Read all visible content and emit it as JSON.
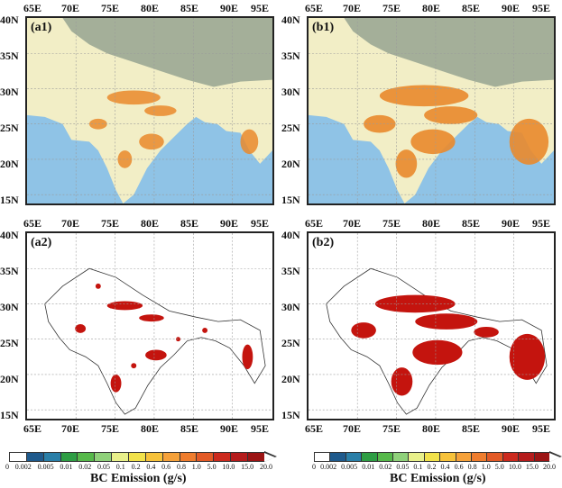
{
  "panels": {
    "a1": {
      "label": "(a1)"
    },
    "b1": {
      "label": "(b1)"
    },
    "a2": {
      "label": "(a2)"
    },
    "b2": {
      "label": "(b2)"
    }
  },
  "axes": {
    "lon_ticks": [
      "65E",
      "70E",
      "75E",
      "80E",
      "85E",
      "90E",
      "95E"
    ],
    "lat_ticks": [
      "40N",
      "35N",
      "30N",
      "25N",
      "20N",
      "15N"
    ]
  },
  "colorbar": {
    "title": "BC Emission (g/s)",
    "tick_labels": [
      "0",
      "0.002",
      "0.005",
      "0.01",
      "0.02",
      "0.05",
      "0.1",
      "0.2",
      "0.4",
      "0.6",
      "0.8",
      "1.0",
      "5.0",
      "10.0",
      "15.0",
      "20.0"
    ],
    "colors": [
      "#ffffff",
      "#1f5a8c",
      "#2a7fa8",
      "#2e9e44",
      "#56b94a",
      "#8fd17a",
      "#e8f08a",
      "#f2e24a",
      "#f7c23a",
      "#f5a13a",
      "#ef7d2e",
      "#e35a26",
      "#cc2a1e",
      "#b51c1c",
      "#9c1414"
    ]
  },
  "map_colors": {
    "ocean": "#8fc3e6",
    "land": "#f2eec6",
    "mountain": "#8a9a8a",
    "emission_orange": "#ea8a2c",
    "emission_red": "#c4140e",
    "grid": "#9a9a9a"
  }
}
